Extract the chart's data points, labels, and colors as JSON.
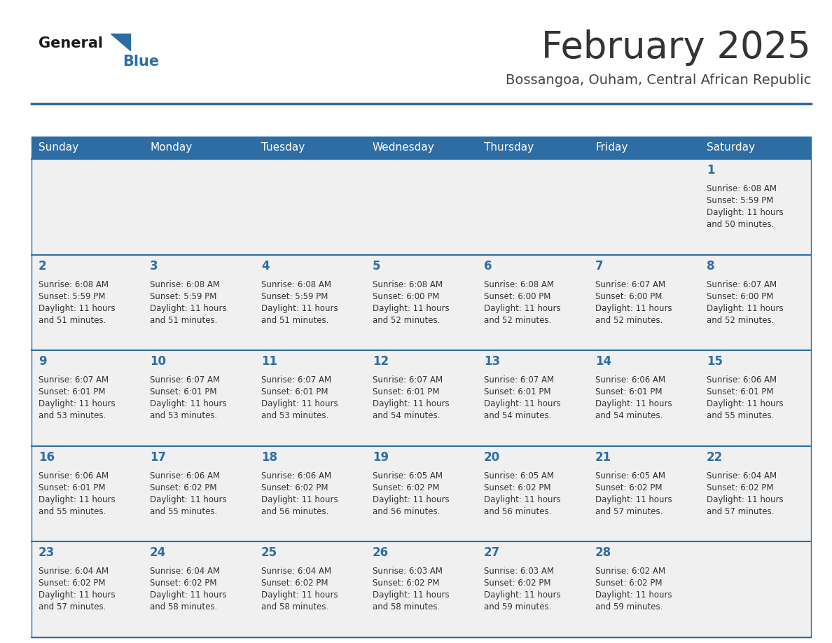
{
  "title": "February 2025",
  "subtitle": "Bossangoa, Ouham, Central African Republic",
  "header_color": "#2E6DA4",
  "header_text_color": "#FFFFFF",
  "cell_bg_color": "#F0F0F0",
  "cell_bg_white": "#FFFFFF",
  "border_color": "#2E6DA4",
  "day_names": [
    "Sunday",
    "Monday",
    "Tuesday",
    "Wednesday",
    "Thursday",
    "Friday",
    "Saturday"
  ],
  "title_color": "#333333",
  "subtitle_color": "#444444",
  "day_number_color": "#2E6DA4",
  "info_color": "#333333",
  "logo_general_color": "#1a1a1a",
  "logo_blue_color": "#2E6DA4",
  "weeks": [
    [
      null,
      null,
      null,
      null,
      null,
      null,
      1
    ],
    [
      2,
      3,
      4,
      5,
      6,
      7,
      8
    ],
    [
      9,
      10,
      11,
      12,
      13,
      14,
      15
    ],
    [
      16,
      17,
      18,
      19,
      20,
      21,
      22
    ],
    [
      23,
      24,
      25,
      26,
      27,
      28,
      null
    ]
  ],
  "day_data": {
    "1": {
      "sunrise": "6:08 AM",
      "sunset": "5:59 PM",
      "daylight_hours": "11 hours",
      "daylight_mins": "and 50 minutes."
    },
    "2": {
      "sunrise": "6:08 AM",
      "sunset": "5:59 PM",
      "daylight_hours": "11 hours",
      "daylight_mins": "and 51 minutes."
    },
    "3": {
      "sunrise": "6:08 AM",
      "sunset": "5:59 PM",
      "daylight_hours": "11 hours",
      "daylight_mins": "and 51 minutes."
    },
    "4": {
      "sunrise": "6:08 AM",
      "sunset": "5:59 PM",
      "daylight_hours": "11 hours",
      "daylight_mins": "and 51 minutes."
    },
    "5": {
      "sunrise": "6:08 AM",
      "sunset": "6:00 PM",
      "daylight_hours": "11 hours",
      "daylight_mins": "and 52 minutes."
    },
    "6": {
      "sunrise": "6:08 AM",
      "sunset": "6:00 PM",
      "daylight_hours": "11 hours",
      "daylight_mins": "and 52 minutes."
    },
    "7": {
      "sunrise": "6:07 AM",
      "sunset": "6:00 PM",
      "daylight_hours": "11 hours",
      "daylight_mins": "and 52 minutes."
    },
    "8": {
      "sunrise": "6:07 AM",
      "sunset": "6:00 PM",
      "daylight_hours": "11 hours",
      "daylight_mins": "and 52 minutes."
    },
    "9": {
      "sunrise": "6:07 AM",
      "sunset": "6:01 PM",
      "daylight_hours": "11 hours",
      "daylight_mins": "and 53 minutes."
    },
    "10": {
      "sunrise": "6:07 AM",
      "sunset": "6:01 PM",
      "daylight_hours": "11 hours",
      "daylight_mins": "and 53 minutes."
    },
    "11": {
      "sunrise": "6:07 AM",
      "sunset": "6:01 PM",
      "daylight_hours": "11 hours",
      "daylight_mins": "and 53 minutes."
    },
    "12": {
      "sunrise": "6:07 AM",
      "sunset": "6:01 PM",
      "daylight_hours": "11 hours",
      "daylight_mins": "and 54 minutes."
    },
    "13": {
      "sunrise": "6:07 AM",
      "sunset": "6:01 PM",
      "daylight_hours": "11 hours",
      "daylight_mins": "and 54 minutes."
    },
    "14": {
      "sunrise": "6:06 AM",
      "sunset": "6:01 PM",
      "daylight_hours": "11 hours",
      "daylight_mins": "and 54 minutes."
    },
    "15": {
      "sunrise": "6:06 AM",
      "sunset": "6:01 PM",
      "daylight_hours": "11 hours",
      "daylight_mins": "and 55 minutes."
    },
    "16": {
      "sunrise": "6:06 AM",
      "sunset": "6:01 PM",
      "daylight_hours": "11 hours",
      "daylight_mins": "and 55 minutes."
    },
    "17": {
      "sunrise": "6:06 AM",
      "sunset": "6:02 PM",
      "daylight_hours": "11 hours",
      "daylight_mins": "and 55 minutes."
    },
    "18": {
      "sunrise": "6:06 AM",
      "sunset": "6:02 PM",
      "daylight_hours": "11 hours",
      "daylight_mins": "and 56 minutes."
    },
    "19": {
      "sunrise": "6:05 AM",
      "sunset": "6:02 PM",
      "daylight_hours": "11 hours",
      "daylight_mins": "and 56 minutes."
    },
    "20": {
      "sunrise": "6:05 AM",
      "sunset": "6:02 PM",
      "daylight_hours": "11 hours",
      "daylight_mins": "and 56 minutes."
    },
    "21": {
      "sunrise": "6:05 AM",
      "sunset": "6:02 PM",
      "daylight_hours": "11 hours",
      "daylight_mins": "and 57 minutes."
    },
    "22": {
      "sunrise": "6:04 AM",
      "sunset": "6:02 PM",
      "daylight_hours": "11 hours",
      "daylight_mins": "and 57 minutes."
    },
    "23": {
      "sunrise": "6:04 AM",
      "sunset": "6:02 PM",
      "daylight_hours": "11 hours",
      "daylight_mins": "and 57 minutes."
    },
    "24": {
      "sunrise": "6:04 AM",
      "sunset": "6:02 PM",
      "daylight_hours": "11 hours",
      "daylight_mins": "and 58 minutes."
    },
    "25": {
      "sunrise": "6:04 AM",
      "sunset": "6:02 PM",
      "daylight_hours": "11 hours",
      "daylight_mins": "and 58 minutes."
    },
    "26": {
      "sunrise": "6:03 AM",
      "sunset": "6:02 PM",
      "daylight_hours": "11 hours",
      "daylight_mins": "and 58 minutes."
    },
    "27": {
      "sunrise": "6:03 AM",
      "sunset": "6:02 PM",
      "daylight_hours": "11 hours",
      "daylight_mins": "and 59 minutes."
    },
    "28": {
      "sunrise": "6:02 AM",
      "sunset": "6:02 PM",
      "daylight_hours": "11 hours",
      "daylight_mins": "and 59 minutes."
    }
  }
}
